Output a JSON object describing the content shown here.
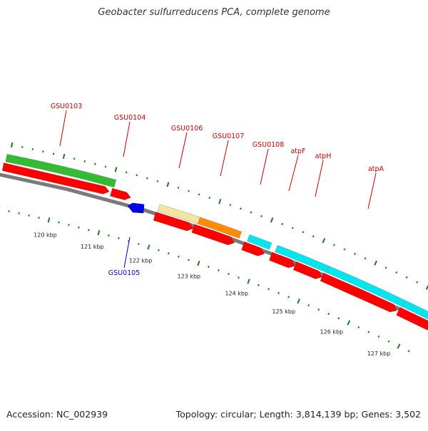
{
  "title": "Geobacter sulfurreducens PCA, complete genome",
  "accession_text": "Accession: NC_002939",
  "summary_text": "Topology: circular; Length: 3,814,139 bp; Genes: 3,502",
  "colors": {
    "backbone": "#7a7a7a",
    "cds": "#ff0000",
    "gene_label": "#cc0000",
    "reverse_label": "#0000cc",
    "tick": "#1f7a1f"
  },
  "scale_labels": [
    "120 kbp",
    "121 kbp",
    "122 kbp",
    "123 kbp",
    "124 kbp",
    "125 kbp",
    "126 kbp",
    "127 kbp"
  ],
  "feature_tracks": [
    {
      "label": "GSU0103",
      "color": "#33bb33"
    },
    {
      "label": "GSU0104",
      "color": "#ff0000"
    },
    {
      "label": "GSU0106",
      "color": "#f2e6a0"
    },
    {
      "label": "GSU0107",
      "color": "#ff8c00"
    },
    {
      "label": "GSU0108",
      "color": "#00e5ee"
    },
    {
      "label": "atpF",
      "color": "#00e5ee"
    },
    {
      "label": "atpH",
      "color": "#00e5ee"
    },
    {
      "label": "atpA",
      "color": "#00e5ee"
    }
  ],
  "reverse_gene": {
    "label": "GSU0105",
    "color": "#0000ee"
  }
}
